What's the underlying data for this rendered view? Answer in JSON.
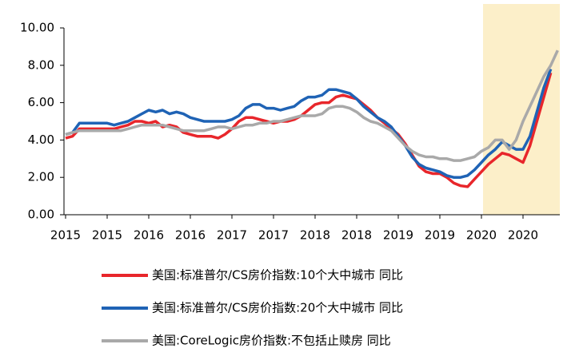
{
  "chart_data": {
    "type": "line",
    "categories": [
      "2015",
      null,
      null,
      null,
      null,
      null,
      "2015",
      null,
      null,
      null,
      null,
      null,
      "2016",
      null,
      null,
      null,
      null,
      null,
      "2016",
      null,
      null,
      null,
      null,
      null,
      "2017",
      null,
      null,
      null,
      null,
      null,
      "2017",
      null,
      null,
      null,
      null,
      null,
      "2018",
      null,
      null,
      null,
      null,
      null,
      "2018",
      null,
      null,
      null,
      null,
      null,
      "2019",
      null,
      null,
      null,
      null,
      null,
      "2019",
      null,
      null,
      null,
      null,
      null,
      "2020",
      null,
      null,
      null,
      null,
      null,
      "2020",
      null,
      null,
      null,
      null,
      null
    ],
    "series": [
      {
        "name": "美国:标准普尔/CS房价指数:10个大中城市 同比",
        "color": "#e8262b",
        "values": [
          4.1,
          4.2,
          4.6,
          4.6,
          4.6,
          4.6,
          4.6,
          4.6,
          4.7,
          4.8,
          5.0,
          5.0,
          4.9,
          5.0,
          4.7,
          4.8,
          4.7,
          4.4,
          4.3,
          4.2,
          4.2,
          4.2,
          4.1,
          4.3,
          4.6,
          5.0,
          5.2,
          5.2,
          5.1,
          5.0,
          4.9,
          5.0,
          5.0,
          5.1,
          5.3,
          5.6,
          5.9,
          6.0,
          6.0,
          6.3,
          6.4,
          6.3,
          6.2,
          5.9,
          5.6,
          5.2,
          4.9,
          4.6,
          4.3,
          3.8,
          3.2,
          2.6,
          2.3,
          2.2,
          2.2,
          2.0,
          1.7,
          1.55,
          1.5,
          1.9,
          2.3,
          2.7,
          3.0,
          3.3,
          3.2,
          3.0,
          2.8,
          3.7,
          5.0,
          6.3,
          7.6,
          null
        ]
      },
      {
        "name": "美国:标准普尔/CS房价指数:20个大中城市 同比",
        "color": "#1f63b5",
        "values": [
          4.3,
          4.4,
          4.9,
          4.9,
          4.9,
          4.9,
          4.9,
          4.8,
          4.9,
          5.0,
          5.2,
          5.4,
          5.6,
          5.5,
          5.6,
          5.4,
          5.5,
          5.4,
          5.2,
          5.1,
          5.0,
          5.0,
          5.0,
          5.0,
          5.1,
          5.3,
          5.7,
          5.9,
          5.9,
          5.7,
          5.7,
          5.6,
          5.7,
          5.8,
          6.1,
          6.3,
          6.3,
          6.4,
          6.7,
          6.7,
          6.6,
          6.5,
          6.2,
          5.8,
          5.5,
          5.2,
          5.0,
          4.7,
          4.2,
          3.7,
          3.1,
          2.7,
          2.5,
          2.4,
          2.3,
          2.1,
          2.0,
          2.0,
          2.1,
          2.4,
          2.8,
          3.2,
          3.5,
          3.9,
          3.7,
          3.5,
          3.5,
          4.2,
          5.5,
          6.8,
          7.8,
          null
        ]
      },
      {
        "name": "美国:CoreLogic房价指数:不包括止赎房 同比",
        "color": "#a9a9a9",
        "values": [
          4.3,
          4.4,
          4.5,
          4.5,
          4.5,
          4.5,
          4.5,
          4.5,
          4.5,
          4.6,
          4.7,
          4.8,
          4.8,
          4.8,
          4.8,
          4.7,
          4.6,
          4.5,
          4.5,
          4.5,
          4.5,
          4.6,
          4.7,
          4.7,
          4.6,
          4.7,
          4.8,
          4.8,
          4.9,
          4.9,
          5.0,
          5.0,
          5.1,
          5.2,
          5.3,
          5.3,
          5.3,
          5.4,
          5.7,
          5.8,
          5.8,
          5.7,
          5.5,
          5.2,
          5.0,
          4.9,
          4.7,
          4.5,
          4.1,
          3.7,
          3.4,
          3.2,
          3.1,
          3.1,
          3.0,
          3.0,
          2.9,
          2.9,
          3.0,
          3.1,
          3.4,
          3.6,
          4.0,
          4.0,
          3.5,
          4.0,
          5.0,
          5.8,
          6.6,
          7.4,
          8.0,
          8.8
        ]
      }
    ],
    "ylim": [
      0,
      10
    ],
    "yticks": [
      {
        "value": 0,
        "label": "0.00"
      },
      {
        "value": 2,
        "label": "2.00"
      },
      {
        "value": 4,
        "label": "4.00"
      },
      {
        "value": 6,
        "label": "6.00"
      },
      {
        "value": 8,
        "label": "8.00"
      },
      {
        "value": 10,
        "label": "10.00"
      }
    ],
    "shade": {
      "from": 60,
      "to": 71,
      "color": "#fcefc9"
    }
  }
}
